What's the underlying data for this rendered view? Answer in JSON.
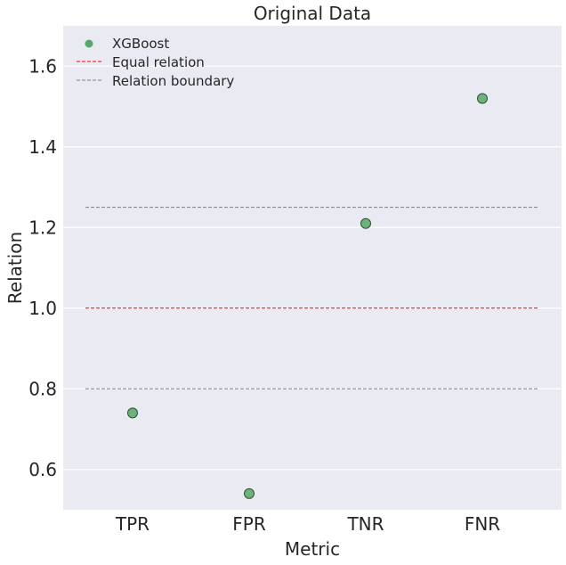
{
  "chart_data": {
    "type": "scatter",
    "title": "Original Data",
    "xlabel": "Metric",
    "ylabel": "Relation",
    "categories": [
      "TPR",
      "FPR",
      "TNR",
      "FNR"
    ],
    "series": [
      {
        "name": "XGBoost",
        "values": [
          0.74,
          0.54,
          1.21,
          1.52
        ],
        "color": "#55a868"
      }
    ],
    "reference_lines": [
      {
        "name": "Equal relation",
        "y": 1.0,
        "color": "#ff0000",
        "style": "dashed"
      },
      {
        "name": "Relation boundary",
        "y": [
          0.8,
          1.25
        ],
        "color": "#808080",
        "style": "dashed"
      }
    ],
    "ylim": [
      0.5,
      1.7
    ],
    "yticks": [
      "0.6",
      "0.8",
      "1.0",
      "1.2",
      "1.4",
      "1.6"
    ],
    "grid": true,
    "legend_position": "top-left",
    "colors": {
      "background": "#eaeaf2",
      "grid": "#ffffff",
      "marker_edge": "#2f4f2f"
    }
  }
}
